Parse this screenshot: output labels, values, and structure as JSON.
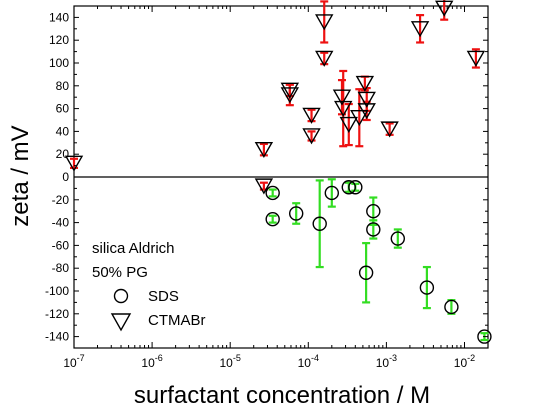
{
  "chart_data": {
    "type": "scatter",
    "title": "",
    "xlabel": "surfactant concentration / M",
    "ylabel": "zeta / mV",
    "xscale": "log",
    "xlim": [
      1e-07,
      0.02
    ],
    "ylim": [
      -150,
      150
    ],
    "xticks": [
      {
        "value": 1e-07,
        "base": "10",
        "exp": "-7"
      },
      {
        "value": 1e-06,
        "base": "10",
        "exp": "-6"
      },
      {
        "value": 1e-05,
        "base": "10",
        "exp": "-5"
      },
      {
        "value": 0.0001,
        "base": "10",
        "exp": "-4"
      },
      {
        "value": 0.001,
        "base": "10",
        "exp": "-3"
      },
      {
        "value": 0.01,
        "base": "10",
        "exp": "-2"
      }
    ],
    "yticks": [
      {
        "value": -140,
        "label": "-140"
      },
      {
        "value": -120,
        "label": "-120"
      },
      {
        "value": -100,
        "label": "-100"
      },
      {
        "value": -80,
        "label": "-80"
      },
      {
        "value": -60,
        "label": "-60"
      },
      {
        "value": -40,
        "label": "-40"
      },
      {
        "value": -20,
        "label": "-20"
      },
      {
        "value": 0,
        "label": "0"
      },
      {
        "value": 20,
        "label": "20"
      },
      {
        "value": 40,
        "label": "40"
      },
      {
        "value": 60,
        "label": "60"
      },
      {
        "value": 80,
        "label": "80"
      },
      {
        "value": 100,
        "label": "100"
      },
      {
        "value": 120,
        "label": "120"
      },
      {
        "value": 140,
        "label": "140"
      }
    ],
    "annotations": [
      "silica Aldrich",
      "50% PG"
    ],
    "legend_placement": "bottom-left",
    "zero_line": true,
    "grid": false,
    "series": [
      {
        "name": "SDS",
        "marker": "circle",
        "error_color": "#33dd22",
        "points": [
          {
            "x": 3.5e-05,
            "y": -37,
            "err": 3
          },
          {
            "x": 3.5e-05,
            "y": -14,
            "err": 3
          },
          {
            "x": 7e-05,
            "y": -32,
            "err": 9
          },
          {
            "x": 0.00014,
            "y": -41,
            "err": 38
          },
          {
            "x": 0.0002,
            "y": -14,
            "err": 12
          },
          {
            "x": 0.00033,
            "y": -9,
            "err": 4
          },
          {
            "x": 0.0004,
            "y": -9,
            "err": 3
          },
          {
            "x": 0.00055,
            "y": -84,
            "err": 26
          },
          {
            "x": 0.00068,
            "y": -30,
            "err": 12
          },
          {
            "x": 0.00068,
            "y": -46,
            "err": 8
          },
          {
            "x": 0.0014,
            "y": -54,
            "err": 8
          },
          {
            "x": 0.0033,
            "y": -97,
            "err": 18
          },
          {
            "x": 0.0068,
            "y": -114,
            "err": 6
          },
          {
            "x": 0.018,
            "y": -140,
            "err": 3
          }
        ]
      },
      {
        "name": "CTMABr",
        "marker": "triangle-down",
        "error_color": "#ee1111",
        "points": [
          {
            "x": 1e-07,
            "y": 12,
            "err": 4
          },
          {
            "x": 2.7e-05,
            "y": -8,
            "err": 3
          },
          {
            "x": 2.7e-05,
            "y": 24,
            "err": 5
          },
          {
            "x": 5.8e-05,
            "y": 72,
            "err": 9
          },
          {
            "x": 5.8e-05,
            "y": 76,
            "err": 5
          },
          {
            "x": 0.00011,
            "y": 54,
            "err": 5
          },
          {
            "x": 0.00011,
            "y": 36,
            "err": 4
          },
          {
            "x": 0.00016,
            "y": 136,
            "err": 18
          },
          {
            "x": 0.00016,
            "y": 104,
            "err": 5
          },
          {
            "x": 0.00027,
            "y": 70,
            "err": 15
          },
          {
            "x": 0.00028,
            "y": 60,
            "err": 33
          },
          {
            "x": 0.00033,
            "y": 46,
            "err": 18
          },
          {
            "x": 0.00045,
            "y": 52,
            "err": 25
          },
          {
            "x": 0.00053,
            "y": 82,
            "err": 6
          },
          {
            "x": 0.00056,
            "y": 68,
            "err": 10
          },
          {
            "x": 0.00056,
            "y": 58,
            "err": 8
          },
          {
            "x": 0.0011,
            "y": 42,
            "err": 5
          },
          {
            "x": 0.0027,
            "y": 130,
            "err": 12
          },
          {
            "x": 0.0055,
            "y": 148,
            "err": 10
          },
          {
            "x": 0.014,
            "y": 104,
            "err": 8
          }
        ]
      }
    ]
  }
}
